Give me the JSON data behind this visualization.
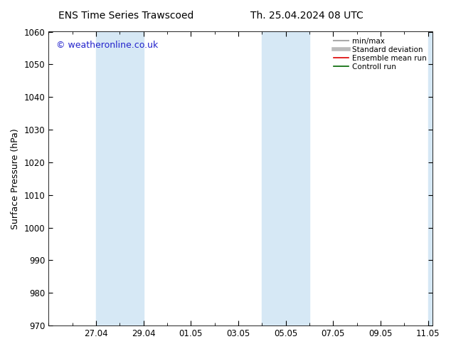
{
  "title_left": "ENS Time Series Trawscoed",
  "title_right": "Th. 25.04.2024 08 UTC",
  "ylabel": "Surface Pressure (hPa)",
  "ylim": [
    970,
    1060
  ],
  "yticks": [
    970,
    980,
    990,
    1000,
    1010,
    1020,
    1030,
    1040,
    1050,
    1060
  ],
  "xtick_labels": [
    "27.04",
    "29.04",
    "01.05",
    "03.05",
    "05.05",
    "07.05",
    "09.05",
    "11.05"
  ],
  "watermark": "© weatheronline.co.uk",
  "shade_color": "#d6e8f5",
  "background_color": "#ffffff",
  "legend_entries": [
    {
      "label": "min/max",
      "color": "#aaaaaa",
      "lw": 1.5
    },
    {
      "label": "Standard deviation",
      "color": "#bbbbbb",
      "lw": 4
    },
    {
      "label": "Ensemble mean run",
      "color": "#dd0000",
      "lw": 1.2
    },
    {
      "label": "Controll run",
      "color": "#006600",
      "lw": 1.2
    }
  ],
  "title_fontsize": 10,
  "axis_label_fontsize": 9,
  "tick_fontsize": 8.5,
  "watermark_color": "#2222cc",
  "watermark_fontsize": 9,
  "legend_fontsize": 7.5
}
